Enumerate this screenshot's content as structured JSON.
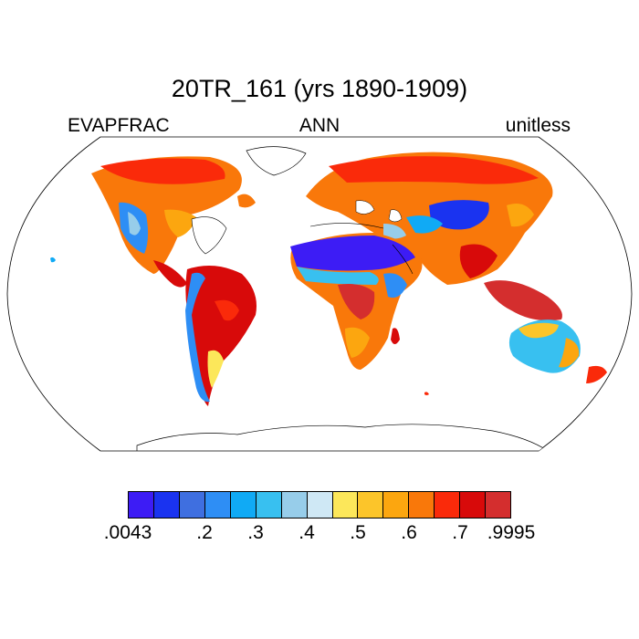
{
  "title": "20TR_161 (yrs 1890-1909)",
  "left_label": "EVAPFRAC",
  "center_label": "ANN",
  "right_label": "unitless",
  "colorbar": {
    "colors": [
      "#3d1cf5",
      "#1a33f0",
      "#3f6fe0",
      "#2e8ef5",
      "#10aaf5",
      "#38c0f0",
      "#97cdea",
      "#cfe8f5",
      "#fce75a",
      "#fcc52a",
      "#fca60f",
      "#f9780a",
      "#fa2a0a",
      "#d80a0a",
      "#d42e2e"
    ],
    "tick_labels": [
      ".0043",
      ".2",
      ".3",
      ".4",
      ".5",
      ".6",
      ".7",
      ".9995"
    ]
  },
  "map": {
    "projection": "Robinson",
    "variable": "EVAPFRAC"
  }
}
